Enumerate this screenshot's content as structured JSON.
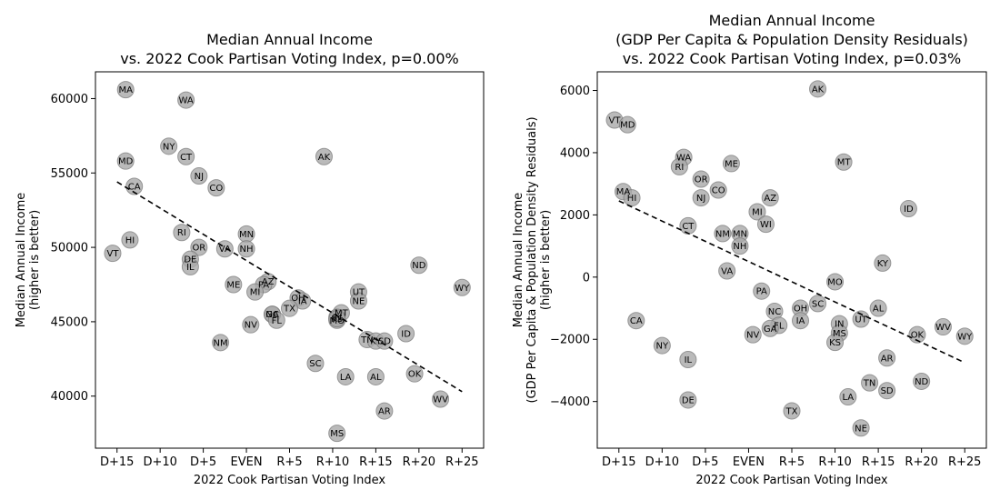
{
  "chart_data": [
    {
      "type": "scatter",
      "title": [
        "Median Annual Income",
        "vs. 2022 Cook Partisan Voting Index, p=0.00%"
      ],
      "xlabel": "2022 Cook Partisan Voting Index",
      "ylabel": [
        "Median Annual Income",
        "(higher is better)"
      ],
      "xlim": [
        -17.5,
        27.5
      ],
      "ylim": [
        36500,
        61800
      ],
      "xticks": [
        {
          "v": -15,
          "label": "D+15"
        },
        {
          "v": -10,
          "label": "D+10"
        },
        {
          "v": -5,
          "label": "D+5"
        },
        {
          "v": 0,
          "label": "EVEN"
        },
        {
          "v": 5,
          "label": "R+5"
        },
        {
          "v": 10,
          "label": "R+10"
        },
        {
          "v": 15,
          "label": "R+15"
        },
        {
          "v": 20,
          "label": "R+20"
        },
        {
          "v": 25,
          "label": "R+25"
        }
      ],
      "yticks": [
        {
          "v": 40000,
          "label": "40000"
        },
        {
          "v": 45000,
          "label": "45000"
        },
        {
          "v": 50000,
          "label": "50000"
        },
        {
          "v": 55000,
          "label": "55000"
        },
        {
          "v": 60000,
          "label": "60000"
        }
      ],
      "trend": {
        "x": [
          -15,
          25
        ],
        "y": [
          54400,
          40300
        ]
      },
      "points": [
        {
          "label": "MA",
          "x": -14,
          "y": 60600
        },
        {
          "label": "WA",
          "x": -7,
          "y": 59900
        },
        {
          "label": "NY",
          "x": -9,
          "y": 56800
        },
        {
          "label": "CT",
          "x": -7,
          "y": 56100
        },
        {
          "label": "AK",
          "x": 9,
          "y": 56100
        },
        {
          "label": "MD",
          "x": -14,
          "y": 55800
        },
        {
          "label": "NJ",
          "x": -5.5,
          "y": 54800
        },
        {
          "label": "CA",
          "x": -13,
          "y": 54100
        },
        {
          "label": "CO",
          "x": -3.5,
          "y": 54000
        },
        {
          "label": "RI",
          "x": -7.5,
          "y": 51000
        },
        {
          "label": "MN",
          "x": 0,
          "y": 50900
        },
        {
          "label": "HI",
          "x": -13.5,
          "y": 50500
        },
        {
          "label": "OR",
          "x": -5.5,
          "y": 50000
        },
        {
          "label": "VA",
          "x": -2.5,
          "y": 49900
        },
        {
          "label": "NH",
          "x": 0,
          "y": 49900
        },
        {
          "label": "VT",
          "x": -15.5,
          "y": 49600
        },
        {
          "label": "DE",
          "x": -6.5,
          "y": 49200
        },
        {
          "label": "IL",
          "x": -6.5,
          "y": 48700
        },
        {
          "label": "ND",
          "x": 20,
          "y": 48800
        },
        {
          "label": "AZ",
          "x": 2.5,
          "y": 47700
        },
        {
          "label": "PA",
          "x": 2,
          "y": 47500
        },
        {
          "label": "ME",
          "x": -1.5,
          "y": 47500
        },
        {
          "label": "WY",
          "x": 25,
          "y": 47300
        },
        {
          "label": "MI",
          "x": 1,
          "y": 47000
        },
        {
          "label": "UT",
          "x": 13,
          "y": 47000
        },
        {
          "label": "OH",
          "x": 6,
          "y": 46600
        },
        {
          "label": "IA",
          "x": 6.5,
          "y": 46400
        },
        {
          "label": "NE",
          "x": 13,
          "y": 46400
        },
        {
          "label": "TX",
          "x": 5,
          "y": 45900
        },
        {
          "label": "GA",
          "x": 3,
          "y": 45500
        },
        {
          "label": "NC",
          "x": 3,
          "y": 45500
        },
        {
          "label": "MT",
          "x": 11,
          "y": 45600
        },
        {
          "label": "FL",
          "x": 3.5,
          "y": 45100
        },
        {
          "label": "IN",
          "x": 10.5,
          "y": 45300
        },
        {
          "label": "MO",
          "x": 10.5,
          "y": 45100
        },
        {
          "label": "KS",
          "x": 10.5,
          "y": 45200
        },
        {
          "label": "NV",
          "x": 0.5,
          "y": 44800
        },
        {
          "label": "ID",
          "x": 18.5,
          "y": 44200
        },
        {
          "label": "TN",
          "x": 14,
          "y": 43800
        },
        {
          "label": "KY",
          "x": 15,
          "y": 43700
        },
        {
          "label": "SD",
          "x": 16,
          "y": 43700
        },
        {
          "label": "NM",
          "x": -3,
          "y": 43600
        },
        {
          "label": "SC",
          "x": 8,
          "y": 42200
        },
        {
          "label": "OK",
          "x": 19.5,
          "y": 41500
        },
        {
          "label": "LA",
          "x": 11.5,
          "y": 41300
        },
        {
          "label": "AL",
          "x": 15,
          "y": 41300
        },
        {
          "label": "WV",
          "x": 22.5,
          "y": 39800
        },
        {
          "label": "AR",
          "x": 16,
          "y": 39000
        },
        {
          "label": "MS",
          "x": 10.5,
          "y": 37500
        }
      ]
    },
    {
      "type": "scatter",
      "title": [
        "Median Annual Income",
        "(GDP Per Capita & Population Density Residuals)",
        "vs. 2022 Cook Partisan Voting Index, p=0.03%"
      ],
      "xlabel": "2022 Cook Partisan Voting Index",
      "ylabel": [
        "Median Annual Income",
        "(GDP Per Capita & Population Density Residuals)",
        "(higher is better)"
      ],
      "xlim": [
        -17.5,
        27.5
      ],
      "ylim": [
        -5500,
        6600
      ],
      "xticks": [
        {
          "v": -15,
          "label": "D+15"
        },
        {
          "v": -10,
          "label": "D+10"
        },
        {
          "v": -5,
          "label": "D+5"
        },
        {
          "v": 0,
          "label": "EVEN"
        },
        {
          "v": 5,
          "label": "R+5"
        },
        {
          "v": 10,
          "label": "R+10"
        },
        {
          "v": 15,
          "label": "R+15"
        },
        {
          "v": 20,
          "label": "R+20"
        },
        {
          "v": 25,
          "label": "R+25"
        }
      ],
      "yticks": [
        {
          "v": -4000,
          "label": "−4000"
        },
        {
          "v": -2000,
          "label": "−2000"
        },
        {
          "v": 0,
          "label": "0"
        },
        {
          "v": 2000,
          "label": "2000"
        },
        {
          "v": 4000,
          "label": "4000"
        },
        {
          "v": 6000,
          "label": "6000"
        }
      ],
      "trend": {
        "x": [
          -15,
          25
        ],
        "y": [
          2450,
          -2750
        ]
      },
      "points": [
        {
          "label": "AK",
          "x": 8,
          "y": 6050
        },
        {
          "label": "VT",
          "x": -15.5,
          "y": 5050
        },
        {
          "label": "MD",
          "x": -14,
          "y": 4900
        },
        {
          "label": "WA",
          "x": -7.5,
          "y": 3850
        },
        {
          "label": "MT",
          "x": 11,
          "y": 3700
        },
        {
          "label": "ME",
          "x": -2,
          "y": 3650
        },
        {
          "label": "RI",
          "x": -8,
          "y": 3550
        },
        {
          "label": "OR",
          "x": -5.5,
          "y": 3150
        },
        {
          "label": "CO",
          "x": -3.5,
          "y": 2800
        },
        {
          "label": "MA",
          "x": -14.5,
          "y": 2750
        },
        {
          "label": "NJ",
          "x": -5.5,
          "y": 2550
        },
        {
          "label": "HI",
          "x": -13.5,
          "y": 2550
        },
        {
          "label": "AZ",
          "x": 2.5,
          "y": 2550
        },
        {
          "label": "ID",
          "x": 18.5,
          "y": 2200
        },
        {
          "label": "MI",
          "x": 1,
          "y": 2100
        },
        {
          "label": "WI",
          "x": 2,
          "y": 1700
        },
        {
          "label": "CT",
          "x": -7,
          "y": 1650
        },
        {
          "label": "NM",
          "x": -3,
          "y": 1400
        },
        {
          "label": "MN",
          "x": -1,
          "y": 1400
        },
        {
          "label": "NH",
          "x": -1,
          "y": 1000
        },
        {
          "label": "KY",
          "x": 15.5,
          "y": 450
        },
        {
          "label": "VA",
          "x": -2.5,
          "y": 200
        },
        {
          "label": "MO",
          "x": 10,
          "y": -150
        },
        {
          "label": "PA",
          "x": 1.5,
          "y": -450
        },
        {
          "label": "SC",
          "x": 8,
          "y": -850
        },
        {
          "label": "OH",
          "x": 6,
          "y": -1000
        },
        {
          "label": "AL",
          "x": 15,
          "y": -1000
        },
        {
          "label": "NC",
          "x": 3,
          "y": -1100
        },
        {
          "label": "UT",
          "x": 13,
          "y": -1350
        },
        {
          "label": "CA",
          "x": -13,
          "y": -1400
        },
        {
          "label": "IA",
          "x": 6,
          "y": -1400
        },
        {
          "label": "IN",
          "x": 10.5,
          "y": -1500
        },
        {
          "label": "FL",
          "x": 3.5,
          "y": -1550
        },
        {
          "label": "WV",
          "x": 22.5,
          "y": -1600
        },
        {
          "label": "GA",
          "x": 2.5,
          "y": -1650
        },
        {
          "label": "MS",
          "x": 10.5,
          "y": -1800
        },
        {
          "label": "NV",
          "x": 0.5,
          "y": -1850
        },
        {
          "label": "OK",
          "x": 19.5,
          "y": -1850
        },
        {
          "label": "WY",
          "x": 25,
          "y": -1900
        },
        {
          "label": "KS",
          "x": 10,
          "y": -2100
        },
        {
          "label": "NY",
          "x": -10,
          "y": -2200
        },
        {
          "label": "AR",
          "x": 16,
          "y": -2600
        },
        {
          "label": "IL",
          "x": -7,
          "y": -2650
        },
        {
          "label": "ND",
          "x": 20,
          "y": -3350
        },
        {
          "label": "TN",
          "x": 14,
          "y": -3400
        },
        {
          "label": "SD",
          "x": 16,
          "y": -3650
        },
        {
          "label": "LA",
          "x": 11.5,
          "y": -3850
        },
        {
          "label": "DE",
          "x": -7,
          "y": -3950
        },
        {
          "label": "TX",
          "x": 5,
          "y": -4300
        },
        {
          "label": "NE",
          "x": 13,
          "y": -4850
        }
      ]
    }
  ]
}
